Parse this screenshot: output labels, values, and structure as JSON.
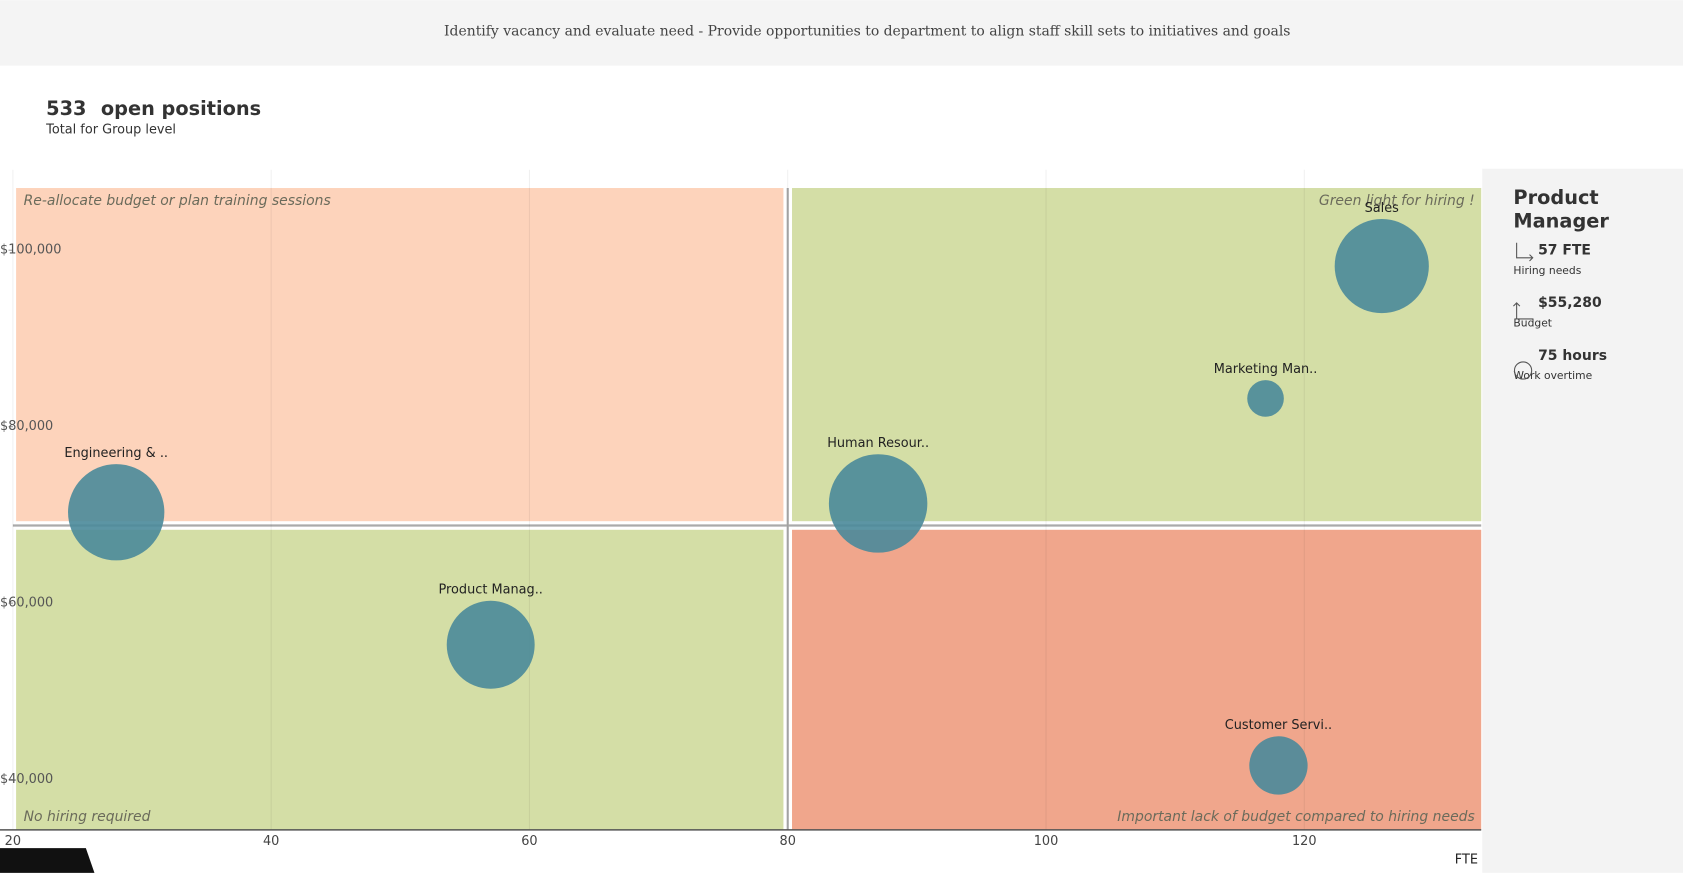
{
  "header": {
    "title": "Identify vacancy and evaluate need - Provide opportunities to department to align staff skill sets to initiatives and goals"
  },
  "kpi": {
    "value": "533",
    "label": "open positions",
    "subtitle": "Total for Group level"
  },
  "detail": {
    "title": "Product Manager",
    "hiring": "57 FTE",
    "hiring_label": "Hiring needs",
    "budget": "$55,280",
    "budget_label": "Budget",
    "overtime": "75 hours",
    "overtime_label": "Work overtime"
  },
  "chart_data": {
    "type": "bubble",
    "x_label": "FTE",
    "categories": [
      "Sales",
      "Marketing Man..",
      "Human Resour..",
      "Engineering & ..",
      "Product Manag..",
      "Customer Servi.."
    ],
    "x": [
      126,
      117,
      87,
      28,
      57,
      118
    ],
    "values": [
      98200,
      83200,
      71300,
      70300,
      55280,
      41600
    ],
    "sizes": [
      86,
      13,
      94,
      90,
      75,
      33
    ],
    "color": "#4a8a9a",
    "xlim": [
      20,
      133.7
    ],
    "ylim": [
      34300,
      107050
    ],
    "xticks": [
      20,
      40,
      60,
      80,
      100,
      120
    ],
    "yticks": [
      {
        "value": 40000,
        "label": "$40,000"
      },
      {
        "value": 60000,
        "label": "$60,000"
      },
      {
        "value": 80000,
        "label": "$80,000"
      },
      {
        "value": 100000,
        "label": "$100,000"
      }
    ],
    "grid": true,
    "quadrant_split": {
      "x": 80,
      "y": 68800
    },
    "quadrants": [
      {
        "corner": "top-left",
        "text": "Re-allocate budget or plan training sessions",
        "color": "#fdd3bb"
      },
      {
        "corner": "top-right",
        "text": "Green light for hiring !",
        "color": "#d4dea6"
      },
      {
        "corner": "bottom-left",
        "text": "No hiring required",
        "color": "#d4dea6"
      },
      {
        "corner": "bottom-right",
        "text": "Important lack of budget compared to hiring needs",
        "color": "#f0a68c"
      }
    ]
  }
}
